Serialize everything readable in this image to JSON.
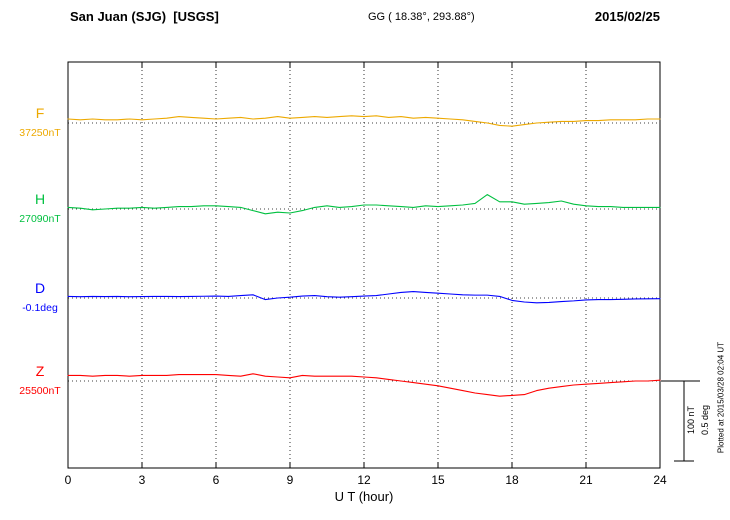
{
  "header": {
    "station_title": "San Juan (SJG)  [USGS]",
    "coordinates": "GG ( 18.38°, 293.88°)",
    "date": "2015/02/25"
  },
  "footer": {
    "plotted_at": "Plotted at 2015/03/28 02:04 UT"
  },
  "chart_data": {
    "type": "line",
    "title": "San Juan (SJG) [USGS] magnetogram 2015/02/25",
    "xlabel": "U T (hour)",
    "ylabel": "",
    "x_range": [
      0,
      24
    ],
    "x_ticks": [
      0,
      3,
      6,
      9,
      12,
      15,
      18,
      21,
      24
    ],
    "x_step_hours": 0.5,
    "grid": "dotted vertical lines at 3-hour ticks, dotted horizontal baseline per channel",
    "legend_position": "left channel labels",
    "scale_bar": {
      "labels": [
        "100 nT",
        "0.5 deg"
      ],
      "nT": 100,
      "deg": 0.5
    },
    "series": [
      {
        "name": "F",
        "unit": "nT",
        "color": "#eda900",
        "baseline_label": "37250nT",
        "baseline_value": 37250,
        "offsets": [
          5,
          4,
          5,
          4,
          4,
          5,
          4,
          5,
          6,
          8,
          7,
          6,
          5,
          6,
          7,
          5,
          6,
          8,
          6,
          7,
          8,
          7,
          8,
          9,
          8,
          9,
          7,
          8,
          6,
          7,
          6,
          5,
          4,
          2,
          0,
          -3,
          -4,
          -2,
          0,
          1,
          2,
          2,
          3,
          3,
          4,
          4,
          4,
          5,
          5
        ]
      },
      {
        "name": "H",
        "unit": "nT",
        "color": "#00c040",
        "baseline_label": "27090nT",
        "baseline_value": 27090,
        "offsets": [
          2,
          1,
          -1,
          0,
          1,
          1,
          2,
          1,
          2,
          3,
          3,
          4,
          4,
          3,
          2,
          -2,
          -6,
          -4,
          -5,
          -2,
          2,
          4,
          2,
          3,
          5,
          5,
          4,
          3,
          2,
          4,
          3,
          4,
          5,
          7,
          18,
          9,
          9,
          6,
          7,
          8,
          10,
          6,
          4,
          3,
          3,
          2,
          2,
          2,
          2
        ]
      },
      {
        "name": "D",
        "unit": "deg",
        "color": "#0000ff",
        "baseline_label": "-0.1deg",
        "baseline_value": -0.1,
        "offsets": [
          0.01,
          0.008,
          0.01,
          0.009,
          0.01,
          0.008,
          0.009,
          0.01,
          0.01,
          0.009,
          0.01,
          0.011,
          0.012,
          0.01,
          0.015,
          0.02,
          -0.01,
          0.0,
          0.005,
          0.012,
          0.015,
          0.008,
          0.005,
          0.008,
          0.012,
          0.015,
          0.025,
          0.035,
          0.04,
          0.035,
          0.03,
          0.025,
          0.02,
          0.018,
          0.018,
          0.01,
          -0.015,
          -0.025,
          -0.03,
          -0.028,
          -0.022,
          -0.018,
          -0.012,
          -0.01,
          -0.01,
          -0.008,
          -0.006,
          -0.005,
          -0.004
        ]
      },
      {
        "name": "Z",
        "unit": "nT",
        "color": "#ff0000",
        "baseline_label": "25500nT",
        "baseline_value": 25500,
        "offsets": [
          7,
          7,
          6,
          7,
          7,
          6,
          7,
          7,
          7,
          8,
          8,
          8,
          8,
          7,
          6,
          9,
          6,
          5,
          4,
          7,
          6,
          6,
          6,
          6,
          5,
          4,
          2,
          0,
          -2,
          -4,
          -6,
          -9,
          -12,
          -15,
          -17,
          -19,
          -18,
          -17,
          -12,
          -9,
          -7,
          -5,
          -4,
          -3,
          -2,
          -1,
          0,
          0,
          1
        ]
      }
    ]
  }
}
